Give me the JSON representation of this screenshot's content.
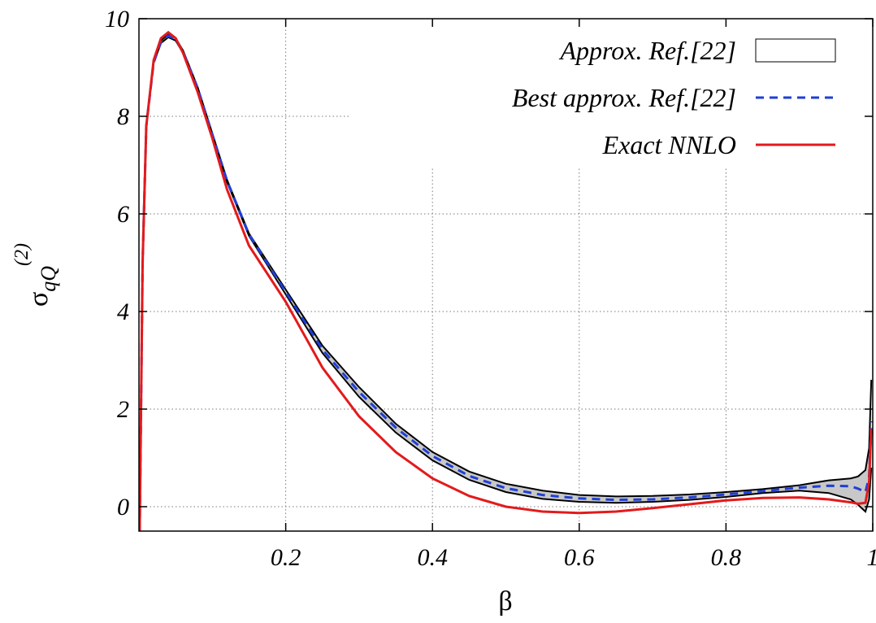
{
  "chart_data": {
    "type": "line",
    "xlabel": "β",
    "ylabel": {
      "symbol": "σ",
      "subscript": "qQ",
      "superscript": "(2)"
    },
    "xlim": [
      0,
      1
    ],
    "ylim": [
      -0.5,
      10
    ],
    "x_ticks": [
      0.2,
      0.4,
      0.6,
      0.8,
      1
    ],
    "x_tick_labels": [
      "0.2",
      "0.4",
      "0.6",
      "0.8",
      "1"
    ],
    "y_ticks": [
      0,
      2,
      4,
      6,
      8,
      10
    ],
    "y_tick_labels": [
      "0",
      "2",
      "4",
      "6",
      "8",
      "10"
    ],
    "grid": true,
    "legend_position": "top-right",
    "series": [
      {
        "name": "Approx. Ref.[22]",
        "style": "band",
        "color": "#000000",
        "fill": "#c8c8c8",
        "upper": [
          [
            0.001,
            -0.5
          ],
          [
            0.005,
            5.0
          ],
          [
            0.01,
            7.8
          ],
          [
            0.02,
            9.1
          ],
          [
            0.03,
            9.55
          ],
          [
            0.04,
            9.68
          ],
          [
            0.05,
            9.6
          ],
          [
            0.06,
            9.35
          ],
          [
            0.08,
            8.6
          ],
          [
            0.1,
            7.65
          ],
          [
            0.12,
            6.7
          ],
          [
            0.15,
            5.6
          ],
          [
            0.2,
            4.45
          ],
          [
            0.25,
            3.3
          ],
          [
            0.3,
            2.45
          ],
          [
            0.35,
            1.7
          ],
          [
            0.4,
            1.12
          ],
          [
            0.45,
            0.72
          ],
          [
            0.5,
            0.47
          ],
          [
            0.55,
            0.33
          ],
          [
            0.6,
            0.24
          ],
          [
            0.65,
            0.21
          ],
          [
            0.7,
            0.22
          ],
          [
            0.75,
            0.25
          ],
          [
            0.8,
            0.3
          ],
          [
            0.85,
            0.36
          ],
          [
            0.9,
            0.44
          ],
          [
            0.94,
            0.54
          ],
          [
            0.97,
            0.58
          ],
          [
            0.98,
            0.62
          ],
          [
            0.99,
            0.75
          ],
          [
            0.995,
            1.2
          ],
          [
            0.998,
            2.6
          ]
        ],
        "lower": [
          [
            0.001,
            -0.5
          ],
          [
            0.005,
            5.0
          ],
          [
            0.01,
            7.8
          ],
          [
            0.02,
            9.1
          ],
          [
            0.03,
            9.5
          ],
          [
            0.04,
            9.62
          ],
          [
            0.05,
            9.55
          ],
          [
            0.06,
            9.3
          ],
          [
            0.08,
            8.55
          ],
          [
            0.1,
            7.6
          ],
          [
            0.12,
            6.65
          ],
          [
            0.15,
            5.55
          ],
          [
            0.2,
            4.35
          ],
          [
            0.25,
            3.15
          ],
          [
            0.3,
            2.25
          ],
          [
            0.35,
            1.52
          ],
          [
            0.4,
            0.95
          ],
          [
            0.45,
            0.55
          ],
          [
            0.5,
            0.3
          ],
          [
            0.55,
            0.16
          ],
          [
            0.6,
            0.1
          ],
          [
            0.65,
            0.08
          ],
          [
            0.7,
            0.1
          ],
          [
            0.75,
            0.14
          ],
          [
            0.8,
            0.2
          ],
          [
            0.85,
            0.28
          ],
          [
            0.9,
            0.33
          ],
          [
            0.94,
            0.28
          ],
          [
            0.97,
            0.15
          ],
          [
            0.98,
            0.04
          ],
          [
            0.99,
            -0.1
          ],
          [
            0.995,
            0.15
          ],
          [
            0.998,
            0.8
          ]
        ]
      },
      {
        "name": "Best approx. Ref.[22]",
        "style": "dashed",
        "color": "#1f3fd6",
        "points": [
          [
            0.001,
            -0.5
          ],
          [
            0.005,
            5.0
          ],
          [
            0.01,
            7.8
          ],
          [
            0.02,
            9.1
          ],
          [
            0.03,
            9.52
          ],
          [
            0.04,
            9.65
          ],
          [
            0.05,
            9.58
          ],
          [
            0.06,
            9.33
          ],
          [
            0.08,
            8.58
          ],
          [
            0.1,
            7.63
          ],
          [
            0.12,
            6.68
          ],
          [
            0.15,
            5.58
          ],
          [
            0.2,
            4.4
          ],
          [
            0.25,
            3.22
          ],
          [
            0.3,
            2.35
          ],
          [
            0.35,
            1.62
          ],
          [
            0.4,
            1.04
          ],
          [
            0.45,
            0.63
          ],
          [
            0.5,
            0.38
          ],
          [
            0.55,
            0.24
          ],
          [
            0.6,
            0.17
          ],
          [
            0.65,
            0.14
          ],
          [
            0.7,
            0.15
          ],
          [
            0.75,
            0.19
          ],
          [
            0.8,
            0.25
          ],
          [
            0.85,
            0.32
          ],
          [
            0.9,
            0.39
          ],
          [
            0.94,
            0.43
          ],
          [
            0.97,
            0.42
          ],
          [
            0.98,
            0.37
          ],
          [
            0.99,
            0.3
          ],
          [
            0.995,
            0.6
          ],
          [
            0.998,
            1.75
          ]
        ]
      },
      {
        "name": "Exact NNLO",
        "style": "solid",
        "color": "#e31a1c",
        "points": [
          [
            0.001,
            -0.5
          ],
          [
            0.005,
            5.0
          ],
          [
            0.01,
            7.8
          ],
          [
            0.02,
            9.15
          ],
          [
            0.03,
            9.6
          ],
          [
            0.04,
            9.72
          ],
          [
            0.05,
            9.6
          ],
          [
            0.06,
            9.3
          ],
          [
            0.08,
            8.5
          ],
          [
            0.1,
            7.55
          ],
          [
            0.12,
            6.5
          ],
          [
            0.15,
            5.35
          ],
          [
            0.2,
            4.2
          ],
          [
            0.25,
            2.85
          ],
          [
            0.3,
            1.85
          ],
          [
            0.35,
            1.12
          ],
          [
            0.4,
            0.58
          ],
          [
            0.45,
            0.22
          ],
          [
            0.5,
            0.0
          ],
          [
            0.55,
            -0.1
          ],
          [
            0.6,
            -0.13
          ],
          [
            0.65,
            -0.1
          ],
          [
            0.7,
            -0.03
          ],
          [
            0.75,
            0.05
          ],
          [
            0.8,
            0.13
          ],
          [
            0.85,
            0.18
          ],
          [
            0.9,
            0.19
          ],
          [
            0.94,
            0.15
          ],
          [
            0.97,
            0.09
          ],
          [
            0.98,
            0.06
          ],
          [
            0.99,
            0.08
          ],
          [
            0.995,
            0.5
          ],
          [
            0.998,
            1.6
          ]
        ]
      }
    ]
  }
}
